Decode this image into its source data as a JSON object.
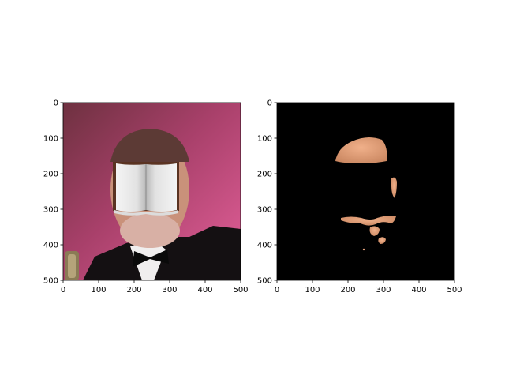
{
  "chart_data": [
    {
      "type": "image",
      "title": "",
      "image_content": "photo of a man in a tuxedo and bow tie, face covered by an open book",
      "x_ticks": [
        0,
        100,
        200,
        300,
        400,
        500
      ],
      "y_ticks": [
        0,
        100,
        200,
        300,
        400,
        500
      ],
      "xlim": [
        0,
        500
      ],
      "ylim": [
        500,
        0
      ],
      "background_color": "#c0406a"
    },
    {
      "type": "image",
      "title": "",
      "image_content": "skin-region mask on black background",
      "x_ticks": [
        0,
        100,
        200,
        300,
        400,
        500
      ],
      "y_ticks": [
        0,
        100,
        200,
        300,
        400,
        500
      ],
      "xlim": [
        0,
        500
      ],
      "ylim": [
        500,
        0
      ],
      "background_color": "#000000",
      "skin_color": "#e7a07a"
    }
  ]
}
